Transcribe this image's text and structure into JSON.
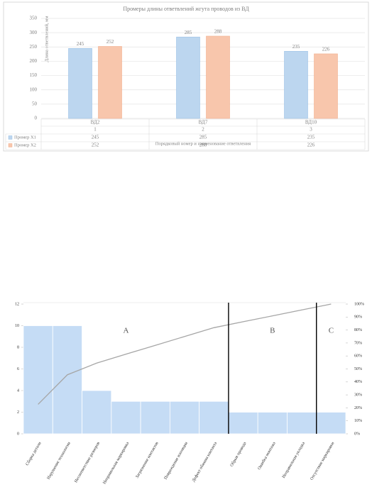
{
  "chart_data": [
    {
      "type": "bar",
      "title": "Промеры длины ответвлений жгута проводов из ВД",
      "y_label": "Длина ответвлений, мм",
      "x_label": "Порядковый номер и наименование ответвления",
      "categories": [
        "ВД2",
        "ВД7",
        "ВД10"
      ],
      "category_numbers": [
        1,
        2,
        3
      ],
      "series": [
        {
          "name": "Промер X1",
          "color": "#bcd6ef",
          "values": [
            245,
            285,
            235
          ]
        },
        {
          "name": "Промер X2",
          "color": "#f8c6ac",
          "values": [
            252,
            288,
            226
          ]
        }
      ],
      "ylim": [
        0,
        350
      ],
      "yticks": [
        0,
        50,
        100,
        150,
        200,
        250,
        300,
        350
      ],
      "grid": true
    },
    {
      "type": "pareto",
      "categories": [
        "Сборка детали",
        "Нарушение технологии",
        "Несоответствие размеров",
        "Неправильная маркировка",
        "Загрязнение контактов",
        "Повреждение изоляции",
        "Дефект обжима контакта",
        "Обрыв провода",
        "Ошибка монтажа",
        "Неправильная укладка",
        "Отсутствие маркировки"
      ],
      "values": [
        10,
        10,
        4,
        3,
        3,
        3,
        3,
        2,
        2,
        2,
        2
      ],
      "color": "#c5dcf5",
      "line_values": [
        22.7,
        45.5,
        54.5,
        61.4,
        68.2,
        75,
        81.8,
        86.4,
        90.9,
        95.5,
        100
      ],
      "line_color": "#a6a6a6",
      "ylim": [
        0,
        12
      ],
      "yticks": [
        0,
        2,
        4,
        6,
        8,
        10,
        12
      ],
      "y2lim": [
        0,
        100
      ],
      "y2ticks": [
        {
          "value": 0,
          "label": "0%"
        },
        {
          "value": 10,
          "label": "10%"
        },
        {
          "value": 20,
          "label": "20%"
        },
        {
          "value": 30,
          "label": "30%"
        },
        {
          "value": 40,
          "label": "40%"
        },
        {
          "value": 50,
          "label": "50%"
        },
        {
          "value": 60,
          "label": "60%"
        },
        {
          "value": 70,
          "label": "70%"
        },
        {
          "value": 80,
          "label": "80%"
        },
        {
          "value": 90,
          "label": "90%"
        },
        {
          "value": 100,
          "label": "100%"
        }
      ],
      "zones": [
        "A",
        "B",
        "C"
      ],
      "zone_ends": [
        7,
        10,
        11
      ]
    }
  ]
}
